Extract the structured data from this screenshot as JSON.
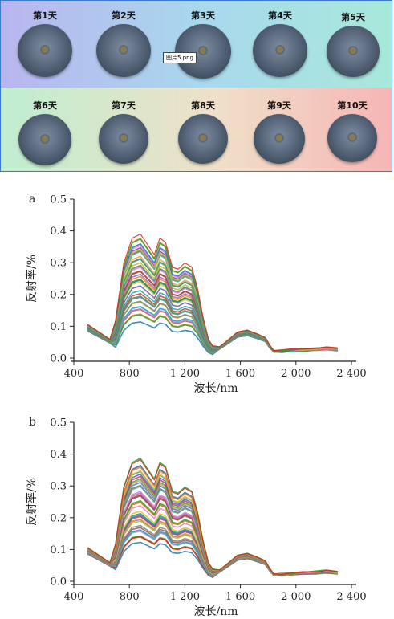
{
  "photo_panel": {
    "days_top": [
      "第1天",
      "第2天",
      "第3天",
      "第4天",
      "第5天"
    ],
    "days_bottom": [
      "第6天",
      "第7天",
      "第8天",
      "第9天",
      "第10天"
    ],
    "file_tag": "图片5.png"
  },
  "chart_data": [
    {
      "type": "line",
      "panel_label": "a",
      "xlabel": "波长/nm",
      "ylabel": "反射率/%",
      "xlim": [
        400,
        2400
      ],
      "ylim": [
        0,
        0.5
      ],
      "xticks": [
        400,
        800,
        1200,
        1600,
        2000,
        2400
      ],
      "xtick_labels": [
        "400",
        "800",
        "1 200",
        "1 600",
        "2 000",
        "2 400"
      ],
      "yticks": [
        0,
        0.1,
        0.2,
        0.3,
        0.4,
        0.5
      ],
      "ytick_labels": [
        "0.0",
        "0.1",
        "0.2",
        "0.3",
        "0.4",
        "0.5"
      ],
      "series_count": 40
    },
    {
      "type": "line",
      "panel_label": "b",
      "xlabel": "波长/nm",
      "ylabel": "反射率/%",
      "xlim": [
        400,
        2400
      ],
      "ylim": [
        0,
        0.5
      ],
      "xticks": [
        400,
        800,
        1200,
        1600,
        2000,
        2400
      ],
      "xtick_labels": [
        "400",
        "800",
        "1 200",
        "1 600",
        "2 000",
        "2 400"
      ],
      "yticks": [
        0,
        0.1,
        0.2,
        0.3,
        0.4,
        0.5
      ],
      "ytick_labels": [
        "0.0",
        "0.1",
        "0.2",
        "0.3",
        "0.4",
        "0.5"
      ],
      "series_count": 40
    }
  ]
}
